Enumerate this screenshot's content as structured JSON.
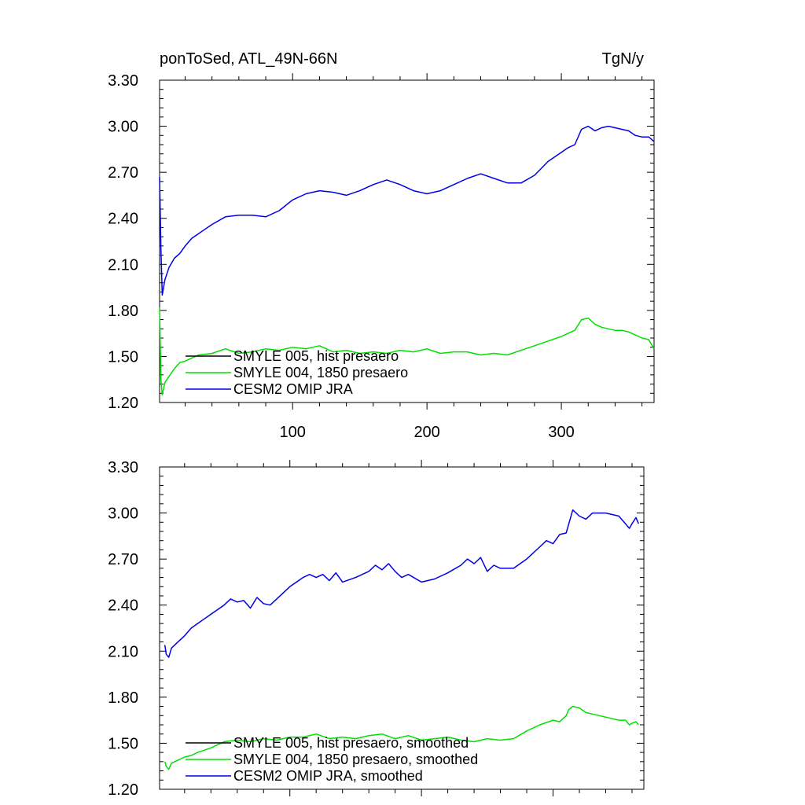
{
  "title_left": "ponToSed, ATL_49N-66N",
  "title_right": "TgN/y",
  "chart_data": [
    {
      "type": "line",
      "xlim": [
        1,
        369
      ],
      "ylim": [
        1.2,
        3.3
      ],
      "yticks": [
        "1.20",
        "1.50",
        "1.80",
        "2.10",
        "2.40",
        "2.70",
        "3.00",
        "3.30"
      ],
      "xticks": [
        "100",
        "200",
        "300"
      ],
      "legend_position": "bottom-left",
      "series": [
        {
          "name": "SMYLE 005, hist presaero",
          "color": "#000000",
          "points": []
        },
        {
          "name": "SMYLE 004, 1850 presaero",
          "color": "#00e000",
          "points": [
            [
              1,
              1.82
            ],
            [
              2,
              1.35
            ],
            [
              3,
              1.25
            ],
            [
              5,
              1.33
            ],
            [
              8,
              1.37
            ],
            [
              12,
              1.42
            ],
            [
              16,
              1.46
            ],
            [
              20,
              1.47
            ],
            [
              25,
              1.49
            ],
            [
              30,
              1.51
            ],
            [
              40,
              1.52
            ],
            [
              50,
              1.55
            ],
            [
              60,
              1.52
            ],
            [
              70,
              1.53
            ],
            [
              80,
              1.55
            ],
            [
              90,
              1.54
            ],
            [
              100,
              1.56
            ],
            [
              110,
              1.55
            ],
            [
              120,
              1.57
            ],
            [
              130,
              1.53
            ],
            [
              140,
              1.54
            ],
            [
              150,
              1.52
            ],
            [
              160,
              1.53
            ],
            [
              170,
              1.52
            ],
            [
              180,
              1.54
            ],
            [
              190,
              1.53
            ],
            [
              200,
              1.55
            ],
            [
              210,
              1.52
            ],
            [
              220,
              1.53
            ],
            [
              230,
              1.53
            ],
            [
              240,
              1.51
            ],
            [
              250,
              1.52
            ],
            [
              260,
              1.51
            ],
            [
              270,
              1.54
            ],
            [
              280,
              1.57
            ],
            [
              290,
              1.6
            ],
            [
              300,
              1.63
            ],
            [
              305,
              1.65
            ],
            [
              310,
              1.67
            ],
            [
              315,
              1.74
            ],
            [
              320,
              1.75
            ],
            [
              325,
              1.71
            ],
            [
              330,
              1.69
            ],
            [
              335,
              1.68
            ],
            [
              340,
              1.67
            ],
            [
              345,
              1.67
            ],
            [
              350,
              1.66
            ],
            [
              355,
              1.64
            ],
            [
              360,
              1.62
            ],
            [
              365,
              1.61
            ],
            [
              369,
              1.55
            ]
          ]
        },
        {
          "name": "CESM2 OMIP JRA",
          "color": "#0000e6",
          "points": [
            [
              1,
              2.67
            ],
            [
              2,
              2.2
            ],
            [
              3,
              1.9
            ],
            [
              5,
              2.0
            ],
            [
              8,
              2.08
            ],
            [
              12,
              2.14
            ],
            [
              16,
              2.17
            ],
            [
              20,
              2.22
            ],
            [
              25,
              2.27
            ],
            [
              30,
              2.3
            ],
            [
              40,
              2.36
            ],
            [
              50,
              2.41
            ],
            [
              60,
              2.42
            ],
            [
              70,
              2.42
            ],
            [
              80,
              2.41
            ],
            [
              90,
              2.45
            ],
            [
              100,
              2.52
            ],
            [
              110,
              2.56
            ],
            [
              120,
              2.58
            ],
            [
              130,
              2.57
            ],
            [
              140,
              2.55
            ],
            [
              150,
              2.58
            ],
            [
              160,
              2.62
            ],
            [
              170,
              2.65
            ],
            [
              180,
              2.62
            ],
            [
              190,
              2.58
            ],
            [
              200,
              2.56
            ],
            [
              210,
              2.58
            ],
            [
              220,
              2.62
            ],
            [
              230,
              2.66
            ],
            [
              240,
              2.69
            ],
            [
              250,
              2.66
            ],
            [
              260,
              2.63
            ],
            [
              270,
              2.63
            ],
            [
              280,
              2.68
            ],
            [
              290,
              2.77
            ],
            [
              300,
              2.83
            ],
            [
              305,
              2.86
            ],
            [
              310,
              2.88
            ],
            [
              315,
              2.98
            ],
            [
              320,
              3.0
            ],
            [
              325,
              2.97
            ],
            [
              330,
              2.99
            ],
            [
              335,
              3.0
            ],
            [
              340,
              2.99
            ],
            [
              345,
              2.98
            ],
            [
              350,
              2.97
            ],
            [
              355,
              2.94
            ],
            [
              360,
              2.93
            ],
            [
              365,
              2.93
            ],
            [
              369,
              2.9
            ]
          ]
        }
      ]
    },
    {
      "type": "line",
      "xlim": [
        1,
        369
      ],
      "ylim": [
        1.2,
        3.3
      ],
      "yticks": [
        "1.20",
        "1.50",
        "1.80",
        "2.10",
        "2.40",
        "2.70",
        "3.00",
        "3.30"
      ],
      "legend_position": "bottom-left",
      "series": [
        {
          "name": "SMYLE 005, hist presaero, smoothed",
          "color": "#000000",
          "points": []
        },
        {
          "name": "SMYLE 004, 1850 presaero, smoothed",
          "color": "#00e000",
          "points": [
            [
              5,
              1.38
            ],
            [
              6,
              1.35
            ],
            [
              8,
              1.33
            ],
            [
              10,
              1.37
            ],
            [
              15,
              1.39
            ],
            [
              20,
              1.41
            ],
            [
              25,
              1.42
            ],
            [
              30,
              1.44
            ],
            [
              40,
              1.47
            ],
            [
              50,
              1.51
            ],
            [
              60,
              1.52
            ],
            [
              70,
              1.51
            ],
            [
              80,
              1.53
            ],
            [
              90,
              1.52
            ],
            [
              100,
              1.54
            ],
            [
              110,
              1.54
            ],
            [
              120,
              1.56
            ],
            [
              130,
              1.53
            ],
            [
              140,
              1.54
            ],
            [
              150,
              1.53
            ],
            [
              160,
              1.55
            ],
            [
              170,
              1.56
            ],
            [
              180,
              1.53
            ],
            [
              190,
              1.55
            ],
            [
              200,
              1.52
            ],
            [
              210,
              1.53
            ],
            [
              220,
              1.54
            ],
            [
              230,
              1.52
            ],
            [
              240,
              1.51
            ],
            [
              250,
              1.53
            ],
            [
              260,
              1.52
            ],
            [
              270,
              1.53
            ],
            [
              280,
              1.58
            ],
            [
              290,
              1.62
            ],
            [
              300,
              1.65
            ],
            [
              305,
              1.64
            ],
            [
              310,
              1.68
            ],
            [
              312,
              1.72
            ],
            [
              315,
              1.74
            ],
            [
              320,
              1.73
            ],
            [
              325,
              1.7
            ],
            [
              330,
              1.69
            ],
            [
              335,
              1.68
            ],
            [
              340,
              1.67
            ],
            [
              345,
              1.66
            ],
            [
              350,
              1.65
            ],
            [
              355,
              1.65
            ],
            [
              358,
              1.62
            ],
            [
              360,
              1.63
            ],
            [
              363,
              1.64
            ],
            [
              365,
              1.62
            ]
          ]
        },
        {
          "name": "CESM2 OMIP JRA, smoothed",
          "color": "#0000e6",
          "points": [
            [
              5,
              2.14
            ],
            [
              6,
              2.08
            ],
            [
              8,
              2.06
            ],
            [
              10,
              2.12
            ],
            [
              15,
              2.16
            ],
            [
              20,
              2.2
            ],
            [
              25,
              2.25
            ],
            [
              30,
              2.28
            ],
            [
              40,
              2.34
            ],
            [
              50,
              2.4
            ],
            [
              55,
              2.44
            ],
            [
              60,
              2.42
            ],
            [
              65,
              2.43
            ],
            [
              70,
              2.38
            ],
            [
              75,
              2.45
            ],
            [
              80,
              2.41
            ],
            [
              85,
              2.4
            ],
            [
              90,
              2.44
            ],
            [
              100,
              2.52
            ],
            [
              110,
              2.58
            ],
            [
              115,
              2.6
            ],
            [
              120,
              2.58
            ],
            [
              125,
              2.6
            ],
            [
              130,
              2.56
            ],
            [
              135,
              2.61
            ],
            [
              140,
              2.55
            ],
            [
              150,
              2.58
            ],
            [
              160,
              2.62
            ],
            [
              165,
              2.66
            ],
            [
              170,
              2.63
            ],
            [
              175,
              2.67
            ],
            [
              180,
              2.62
            ],
            [
              185,
              2.58
            ],
            [
              190,
              2.6
            ],
            [
              200,
              2.55
            ],
            [
              210,
              2.57
            ],
            [
              220,
              2.61
            ],
            [
              230,
              2.66
            ],
            [
              235,
              2.7
            ],
            [
              240,
              2.67
            ],
            [
              245,
              2.71
            ],
            [
              250,
              2.62
            ],
            [
              255,
              2.66
            ],
            [
              260,
              2.64
            ],
            [
              270,
              2.64
            ],
            [
              280,
              2.7
            ],
            [
              290,
              2.78
            ],
            [
              295,
              2.82
            ],
            [
              300,
              2.8
            ],
            [
              305,
              2.86
            ],
            [
              310,
              2.87
            ],
            [
              315,
              3.02
            ],
            [
              320,
              2.98
            ],
            [
              325,
              2.96
            ],
            [
              330,
              3.0
            ],
            [
              335,
              3.0
            ],
            [
              340,
              3.0
            ],
            [
              345,
              2.99
            ],
            [
              350,
              2.98
            ],
            [
              355,
              2.93
            ],
            [
              358,
              2.9
            ],
            [
              360,
              2.93
            ],
            [
              363,
              2.97
            ],
            [
              365,
              2.93
            ]
          ]
        }
      ]
    }
  ]
}
